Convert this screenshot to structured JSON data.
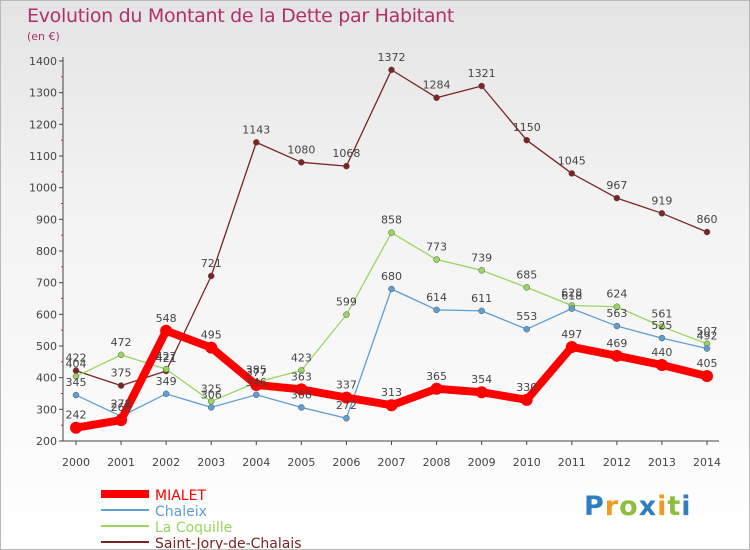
{
  "title": "Evolution du Montant de la Dette par Habitant",
  "unit": "(en €)",
  "logo": {
    "letters": [
      {
        "t": "P",
        "c": "#2f7ec2"
      },
      {
        "t": "r",
        "c": "#f29a1f"
      },
      {
        "t": "o",
        "c": "#8cbe3f"
      },
      {
        "t": "x",
        "c": "#2f7ec2"
      },
      {
        "t": "i",
        "c": "#f29a1f"
      },
      {
        "t": "t",
        "c": "#8cbe3f"
      },
      {
        "t": "i",
        "c": "#2f7ec2"
      }
    ]
  },
  "chart_data": {
    "type": "line",
    "title": "Evolution du Montant de la Dette par Habitant",
    "ylabel": "(en €)",
    "x": [
      "2000",
      "2001",
      "2002",
      "2003",
      "2004",
      "2005",
      "2006",
      "2007",
      "2008",
      "2009",
      "2010",
      "2011",
      "2012",
      "2013",
      "2014"
    ],
    "ylim": [
      200,
      1400
    ],
    "yticks": [
      200,
      300,
      400,
      500,
      600,
      700,
      800,
      900,
      1000,
      1100,
      1200,
      1300,
      1400
    ],
    "grid": false,
    "legend": "bottom-left",
    "series": [
      {
        "name": "MIALET",
        "color": "#ff0000",
        "values": [
          242,
          266,
          548,
          495,
          377,
          363,
          337,
          313,
          365,
          354,
          330,
          497,
          469,
          440,
          405
        ]
      },
      {
        "name": "Chaleix",
        "color": "#5d9fd3",
        "values": [
          345,
          278,
          349,
          306,
          346,
          306,
          272,
          680,
          614,
          611,
          553,
          618,
          563,
          525,
          492
        ]
      },
      {
        "name": "La Coquille",
        "color": "#99d660",
        "values": [
          404,
          472,
          427,
          325,
          385,
          423,
          599,
          858,
          773,
          739,
          685,
          628,
          624,
          561,
          507
        ]
      },
      {
        "name": "Saint-Jory-de-Chalais",
        "color": "#7a2424",
        "values": [
          422,
          375,
          421,
          721,
          1143,
          1080,
          1068,
          1372,
          1284,
          1321,
          1150,
          1045,
          967,
          919,
          860
        ]
      }
    ]
  }
}
